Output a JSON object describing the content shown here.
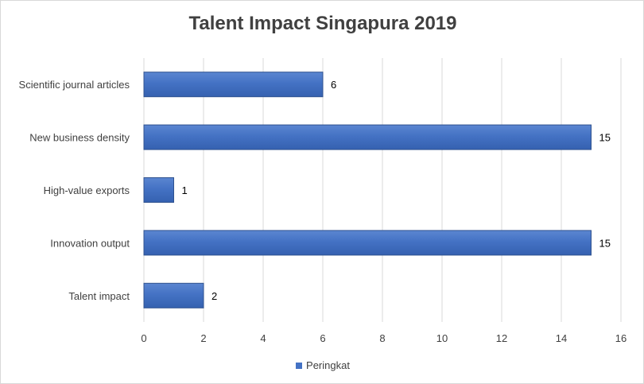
{
  "chart_data": {
    "type": "bar",
    "orientation": "horizontal",
    "title": "Talent Impact Singapura 2019",
    "categories": [
      "Scientific journal articles",
      "New business density",
      "High-value exports",
      "Innovation output",
      "Talent impact"
    ],
    "series": [
      {
        "name": "Peringkat",
        "values": [
          6,
          15,
          1,
          15,
          2
        ]
      }
    ],
    "xlim": [
      0,
      16
    ],
    "xticks": [
      0,
      2,
      4,
      6,
      8,
      10,
      12,
      14,
      16
    ],
    "grid": true,
    "legend": "bottom",
    "bar_color": "#4472c4"
  }
}
